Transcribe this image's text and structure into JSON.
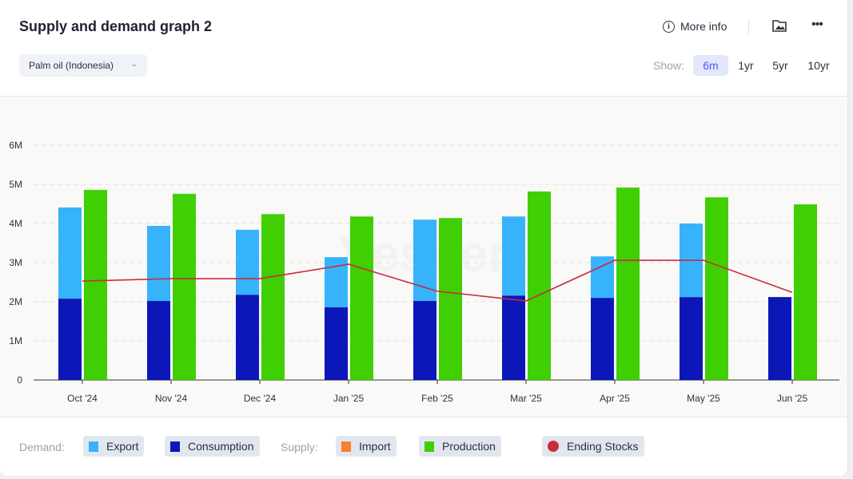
{
  "header": {
    "title": "Supply and demand graph 2",
    "more_info": "More info",
    "select_value": "Palm oil (Indonesia)",
    "show_label": "Show:",
    "ranges": [
      "6m",
      "1yr",
      "5yr",
      "10yr"
    ],
    "active_range": "6m"
  },
  "watermark": "Vesper",
  "legend": {
    "demand_label": "Demand:",
    "supply_label": "Supply:",
    "items": [
      {
        "name": "Export",
        "color": "#36b3fb"
      },
      {
        "name": "Consumption",
        "color": "#0c17b7"
      },
      {
        "name": "Import",
        "color": "#fb7f2c"
      },
      {
        "name": "Production",
        "color": "#3fcf02"
      },
      {
        "name": "Ending Stocks",
        "color": "#cb2b3e"
      }
    ]
  },
  "chart_data": {
    "type": "bar",
    "categories": [
      "Oct '24",
      "Nov '24",
      "Dec '24",
      "Jan '25",
      "Feb '25",
      "Mar '25",
      "Apr '25",
      "May '25",
      "Jun '25"
    ],
    "ylim": [
      0,
      6000000
    ],
    "yticks": [
      "0",
      "1M",
      "2M",
      "3M",
      "4M",
      "5M",
      "6M"
    ],
    "series": [
      {
        "name": "Consumption",
        "stack": "demand",
        "values": [
          2.08,
          2.02,
          2.18,
          1.86,
          2.02,
          2.16,
          2.1,
          2.12,
          2.12
        ]
      },
      {
        "name": "Export",
        "stack": "demand",
        "values": [
          2.33,
          1.92,
          1.66,
          1.28,
          2.08,
          2.02,
          1.06,
          1.88,
          0
        ]
      },
      {
        "name": "Import",
        "stack": "supply",
        "values": [
          0,
          0,
          0,
          0,
          0,
          0,
          0,
          0,
          0
        ]
      },
      {
        "name": "Production",
        "stack": "supply",
        "values": [
          4.86,
          4.76,
          4.24,
          4.18,
          4.14,
          4.82,
          4.92,
          4.67,
          4.49
        ]
      },
      {
        "name": "Ending Stocks",
        "type": "line",
        "values": [
          2.53,
          2.59,
          2.59,
          2.96,
          2.27,
          2.02,
          3.06,
          3.06,
          2.24
        ]
      }
    ],
    "units": "million"
  }
}
